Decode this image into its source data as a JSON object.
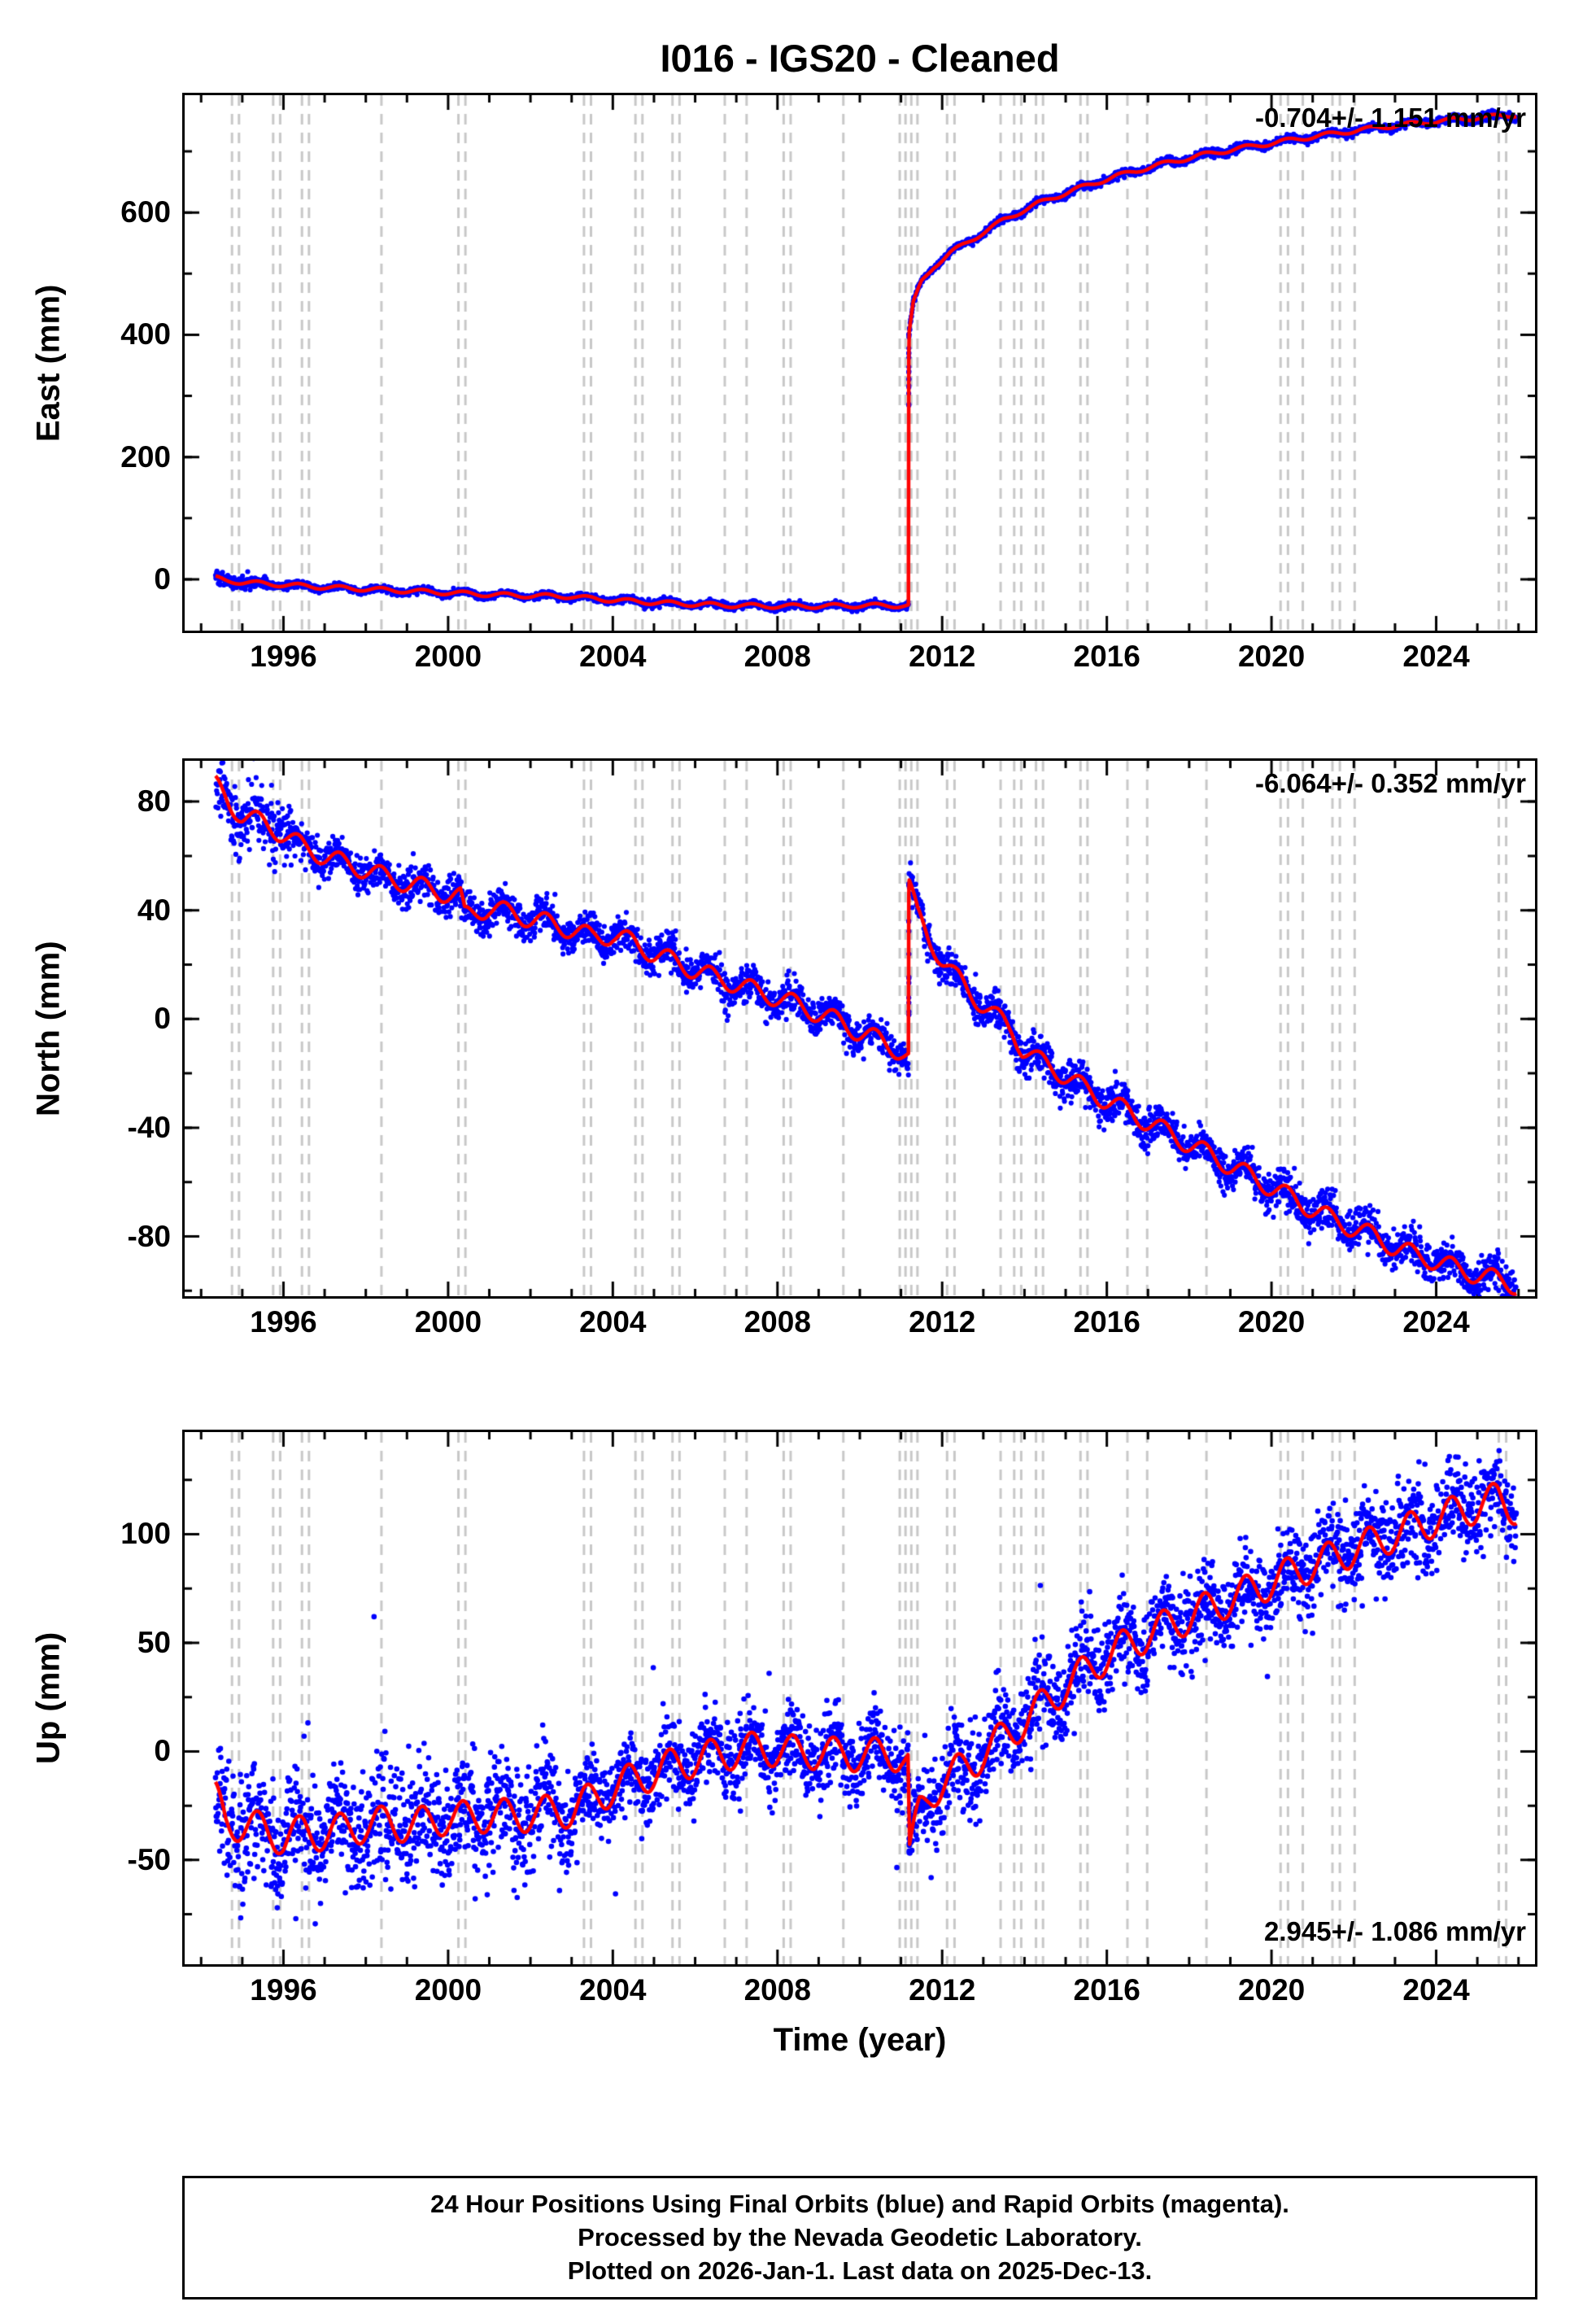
{
  "title": "I016  - IGS20 - Cleaned",
  "colors": {
    "points": "#0000ff",
    "model": "#ff0000",
    "event_line": "#c8c8c8",
    "frame": "#000000"
  },
  "axis_x": {
    "label": "Time (year)",
    "lim": [
      1993.6,
      2026.4
    ],
    "ticks": [
      1996,
      2000,
      2004,
      2008,
      2012,
      2016,
      2020,
      2024
    ],
    "tick_labels": [
      "1996",
      "2000",
      "2004",
      "2008",
      "2012",
      "2016",
      "2020",
      "2024"
    ]
  },
  "events": [
    1994.75,
    1994.92,
    1995.75,
    1995.92,
    1996.45,
    1996.62,
    1998.38,
    2000.25,
    2000.42,
    2003.3,
    2003.47,
    2004.55,
    2004.72,
    2005.45,
    2005.62,
    2006.72,
    2007.25,
    2008.15,
    2008.32,
    2009.6,
    2010.97,
    2011.11,
    2011.25,
    2011.4,
    2012.12,
    2012.3,
    2013.42,
    2013.75,
    2013.92,
    2014.28,
    2014.45,
    2015.36,
    2015.53,
    2016.5,
    2016.98,
    2018.42,
    2020.22,
    2020.4,
    2020.76,
    2021.48,
    2021.66,
    2022.02,
    2025.52,
    2025.7
  ],
  "chart_data": [
    {
      "type": "scatter",
      "name": "east",
      "ylabel": "East (mm)",
      "rate_label": "-0.704+/- 1.151 mm/yr",
      "rate_pos": "top-right",
      "ylim": [
        -84,
        792
      ],
      "yticks": [
        0,
        200,
        400,
        600
      ],
      "ytick_labels": [
        "0",
        "200",
        "400",
        "600"
      ],
      "yminor": 100,
      "trange": [
        1994.35,
        2025.95
      ],
      "seasonal_amp": 3.5,
      "noise": [
        [
          1995.6,
          5.5
        ],
        [
          2011.19,
          2.6
        ],
        [
          9999,
          3.0
        ]
      ],
      "seed": 101,
      "dot_r": 3.1,
      "burst": {
        "t": 2011.191,
        "vmin": 265,
        "vmax": 405,
        "n": 16
      },
      "outliers": [],
      "model": [
        [
          1994.35,
          2
        ],
        [
          1994.6,
          -2
        ],
        [
          1995.0,
          -5
        ],
        [
          1996.0,
          -9
        ],
        [
          1997.0,
          -13
        ],
        [
          1998.0,
          -16
        ],
        [
          1999.0,
          -19
        ],
        [
          2000.0,
          -22
        ],
        [
          2001.0,
          -25
        ],
        [
          2002.0,
          -27
        ],
        [
          2003.0,
          -28
        ],
        [
          2003.4,
          -31
        ],
        [
          2004.0,
          -34
        ],
        [
          2005.0,
          -38
        ],
        [
          2006.0,
          -41
        ],
        [
          2007.0,
          -43
        ],
        [
          2008.0,
          -44
        ],
        [
          2009.0,
          -44
        ],
        [
          2010.0,
          -43
        ],
        [
          2011.18,
          -43
        ],
        [
          2011.191,
          400
        ],
        [
          2011.3,
          452
        ],
        [
          2011.5,
          487
        ],
        [
          2011.8,
          512
        ],
        [
          2012.2,
          534
        ],
        [
          2012.8,
          559
        ],
        [
          2013.5,
          588
        ],
        [
          2014.3,
          614
        ],
        [
          2015.2,
          637
        ],
        [
          2016.2,
          659
        ],
        [
          2017.2,
          677
        ],
        [
          2018.3,
          694
        ],
        [
          2019.4,
          707
        ],
        [
          2020.5,
          719
        ],
        [
          2021.6,
          730
        ],
        [
          2022.7,
          740
        ],
        [
          2023.8,
          748
        ],
        [
          2024.8,
          754
        ],
        [
          2025.95,
          760
        ]
      ]
    },
    {
      "type": "scatter",
      "name": "north",
      "ylabel": "North (mm)",
      "rate_label": "-6.064+/- 0.352 mm/yr",
      "rate_pos": "top-right",
      "ylim": [
        -102,
        95
      ],
      "yticks": [
        -80,
        -40,
        0,
        40,
        80
      ],
      "ytick_labels": [
        "-80",
        "-40",
        "0",
        "40",
        "80"
      ],
      "yminor": 20,
      "trange": [
        1994.35,
        2025.95
      ],
      "seasonal_amp": 3.5,
      "noise": [
        [
          1996.2,
          6.5
        ],
        [
          2011.19,
          3.2
        ],
        [
          9999,
          3.6
        ]
      ],
      "seed": 202,
      "dot_r": 3.1,
      "burst": {
        "t": 2011.191,
        "vmin": -12,
        "vmax": 50,
        "n": 12
      },
      "outliers": [],
      "model": [
        [
          1994.35,
          86
        ],
        [
          1994.7,
          79
        ],
        [
          1995.0,
          75
        ],
        [
          1995.5,
          72
        ],
        [
          1996.0,
          68
        ],
        [
          1996.5,
          63
        ],
        [
          1997.0,
          60
        ],
        [
          1997.5,
          57
        ],
        [
          1998.0,
          55
        ],
        [
          1998.5,
          52
        ],
        [
          1999.0,
          50
        ],
        [
          1999.5,
          48
        ],
        [
          2000.0,
          46
        ],
        [
          2000.3,
          45
        ],
        [
          2000.4,
          38
        ],
        [
          2001.0,
          41
        ],
        [
          2001.5,
          39
        ],
        [
          2002.0,
          37
        ],
        [
          2002.5,
          35
        ],
        [
          2003.0,
          33
        ],
        [
          2003.5,
          30
        ],
        [
          2004.0,
          31
        ],
        [
          2004.5,
          28
        ],
        [
          2005.0,
          24
        ],
        [
          2005.5,
          21
        ],
        [
          2006.0,
          18
        ],
        [
          2006.5,
          15
        ],
        [
          2007.0,
          13
        ],
        [
          2007.5,
          10
        ],
        [
          2008.0,
          8
        ],
        [
          2008.5,
          5
        ],
        [
          2009.0,
          2
        ],
        [
          2009.5,
          -1
        ],
        [
          2010.0,
          -5
        ],
        [
          2010.5,
          -8
        ],
        [
          2011.0,
          -12
        ],
        [
          2011.18,
          -14
        ],
        [
          2011.191,
          50
        ],
        [
          2011.4,
          38
        ],
        [
          2011.7,
          29
        ],
        [
          2012.0,
          22
        ],
        [
          2012.3,
          16
        ],
        [
          2012.6,
          11
        ],
        [
          2013.0,
          5
        ],
        [
          2013.3,
          1
        ],
        [
          2013.7,
          -4
        ],
        [
          2013.95,
          -11
        ],
        [
          2014.3,
          -15
        ],
        [
          2014.7,
          -18
        ],
        [
          2015.0,
          -21
        ],
        [
          2015.5,
          -26
        ],
        [
          2016.0,
          -30
        ],
        [
          2016.5,
          -34
        ],
        [
          2017.0,
          -38
        ],
        [
          2017.5,
          -42
        ],
        [
          2018.0,
          -46
        ],
        [
          2018.5,
          -50
        ],
        [
          2019.0,
          -54
        ],
        [
          2019.5,
          -58
        ],
        [
          2020.0,
          -62
        ],
        [
          2020.5,
          -66
        ],
        [
          2021.0,
          -70
        ],
        [
          2021.5,
          -74
        ],
        [
          2022.0,
          -77
        ],
        [
          2022.5,
          -80
        ],
        [
          2023.0,
          -84
        ],
        [
          2023.5,
          -87
        ],
        [
          2024.0,
          -89
        ],
        [
          2024.5,
          -92
        ],
        [
          2025.0,
          -94
        ],
        [
          2025.5,
          -96
        ],
        [
          2025.95,
          -98
        ]
      ]
    },
    {
      "type": "scatter",
      "name": "up",
      "ylabel": "Up (mm)",
      "rate_label": "2.945+/- 1.086 mm/yr",
      "rate_pos": "bottom-right",
      "ylim": [
        -98,
        147
      ],
      "yticks": [
        -50,
        0,
        50,
        100
      ],
      "ytick_labels": [
        "-50",
        "0",
        "50",
        "100"
      ],
      "yminor": 25,
      "trange": [
        1994.35,
        2025.95
      ],
      "seasonal_amp": 8,
      "noise": [
        [
          1995.3,
          16
        ],
        [
          2003.0,
          13
        ],
        [
          2011.19,
          8.5
        ],
        [
          9999,
          10
        ]
      ],
      "seed": 303,
      "dot_r": 3.3,
      "outlier_p": 0.004,
      "burst": {
        "t": 2011.2,
        "vmin": -48,
        "vmax": -8,
        "n": 10
      },
      "outliers": [
        [
          1995.85,
          -72
        ],
        [
          1996.3,
          -77
        ],
        [
          1996.9,
          -70
        ],
        [
          1998.2,
          62
        ],
        [
          2000.95,
          -66
        ],
        [
          2001.6,
          -64
        ]
      ],
      "model": [
        [
          1994.35,
          -22
        ],
        [
          1994.6,
          -32
        ],
        [
          1995.0,
          -34
        ],
        [
          1995.5,
          -36
        ],
        [
          1996.0,
          -40
        ],
        [
          1996.5,
          -37
        ],
        [
          1997.0,
          -38
        ],
        [
          1997.5,
          -36
        ],
        [
          1998.0,
          -34
        ],
        [
          1998.5,
          -33
        ],
        [
          1999.0,
          -34
        ],
        [
          1999.5,
          -33
        ],
        [
          2000.0,
          -30
        ],
        [
          2000.5,
          -31
        ],
        [
          2001.0,
          -29
        ],
        [
          2001.5,
          -30
        ],
        [
          2002.0,
          -29
        ],
        [
          2002.5,
          -28
        ],
        [
          2003.0,
          -27
        ],
        [
          2003.5,
          -22
        ],
        [
          2004.0,
          -17
        ],
        [
          2004.5,
          -13
        ],
        [
          2005.0,
          -10
        ],
        [
          2005.5,
          -6
        ],
        [
          2006.0,
          -4
        ],
        [
          2006.5,
          -2
        ],
        [
          2007.0,
          0
        ],
        [
          2007.5,
          1
        ],
        [
          2008.0,
          1
        ],
        [
          2008.5,
          -1
        ],
        [
          2009.0,
          0
        ],
        [
          2009.5,
          -2
        ],
        [
          2010.0,
          -1
        ],
        [
          2010.5,
          -2
        ],
        [
          2011.0,
          -1
        ],
        [
          2011.17,
          -4
        ],
        [
          2011.21,
          -47
        ],
        [
          2011.45,
          -28
        ],
        [
          2011.7,
          -20
        ],
        [
          2012.0,
          -14
        ],
        [
          2012.4,
          -9
        ],
        [
          2012.8,
          -4
        ],
        [
          2013.2,
          2
        ],
        [
          2013.6,
          8
        ],
        [
          2014.0,
          14
        ],
        [
          2014.5,
          22
        ],
        [
          2015.0,
          30
        ],
        [
          2015.5,
          37
        ],
        [
          2016.0,
          44
        ],
        [
          2016.5,
          49
        ],
        [
          2017.0,
          54
        ],
        [
          2017.5,
          58
        ],
        [
          2018.0,
          62
        ],
        [
          2018.5,
          66
        ],
        [
          2019.0,
          70
        ],
        [
          2019.5,
          74
        ],
        [
          2020.0,
          78
        ],
        [
          2020.5,
          82
        ],
        [
          2021.0,
          86
        ],
        [
          2021.5,
          89
        ],
        [
          2022.0,
          93
        ],
        [
          2022.5,
          96
        ],
        [
          2023.0,
          100
        ],
        [
          2023.5,
          103
        ],
        [
          2024.0,
          107
        ],
        [
          2024.5,
          110
        ],
        [
          2025.0,
          113
        ],
        [
          2025.5,
          116
        ],
        [
          2025.95,
          112
        ]
      ]
    }
  ],
  "caption": {
    "line1": "24 Hour Positions Using Final Orbits (blue) and Rapid Orbits (magenta).",
    "line2": "Processed by the Nevada Geodetic Laboratory.",
    "line3": "Plotted on 2026-Jan-1. Last data on 2025-Dec-13."
  }
}
